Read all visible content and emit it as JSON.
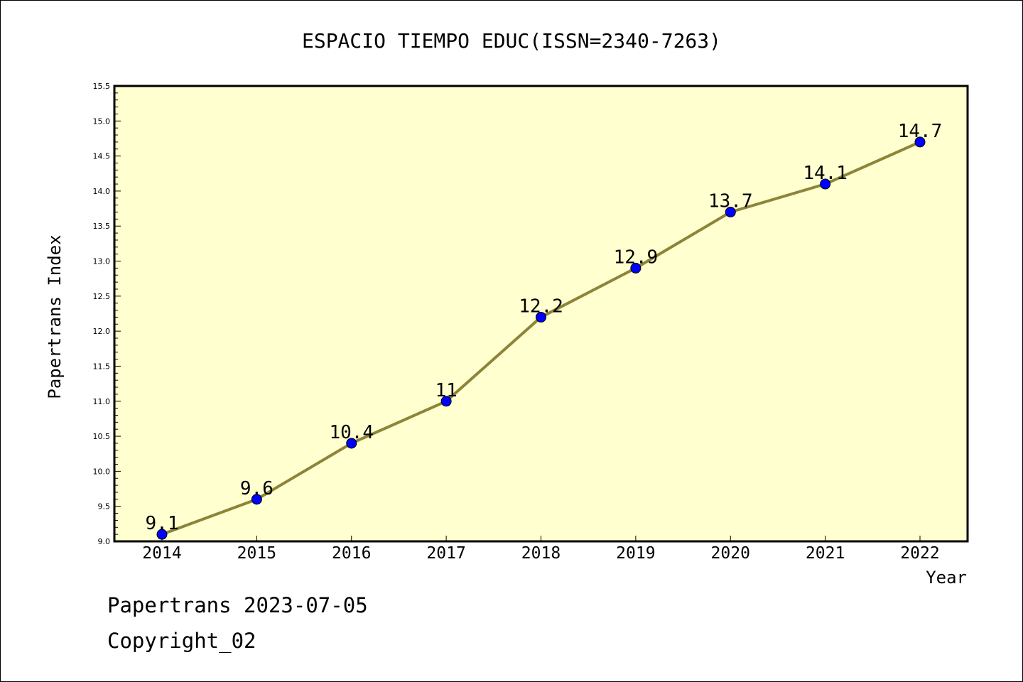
{
  "colors": {
    "plot_background": "#ffffd0",
    "line": "#8c8438",
    "marker": "#0000ff"
  },
  "chart_data": {
    "type": "line",
    "title": "ESPACIO TIEMPO EDUC(ISSN=2340-7263)",
    "xlabel": "Year",
    "ylabel": "Papertrans Index",
    "categories": [
      "2014",
      "2015",
      "2016",
      "2017",
      "2018",
      "2019",
      "2020",
      "2021",
      "2022"
    ],
    "series": [
      {
        "values": [
          9.1,
          9.6,
          10.4,
          11.0,
          12.2,
          12.9,
          13.7,
          14.1,
          14.7
        ],
        "labels": [
          "9.1",
          "9.6",
          "10.4",
          "11",
          "12.2",
          "12.9",
          "13.7",
          "14.1",
          "14.7"
        ]
      }
    ],
    "ylim": [
      9.0,
      15.5
    ],
    "yticks": [
      "9.0",
      "9.5",
      "10.0",
      "10.5",
      "11.0",
      "11.5",
      "12.0",
      "12.5",
      "13.0",
      "13.5",
      "14.0",
      "14.5",
      "15.0",
      "15.5"
    ],
    "grid": false,
    "legend": "none"
  },
  "footer": {
    "line1": "Papertrans 2023-07-05",
    "line2": "Copyright_02"
  }
}
